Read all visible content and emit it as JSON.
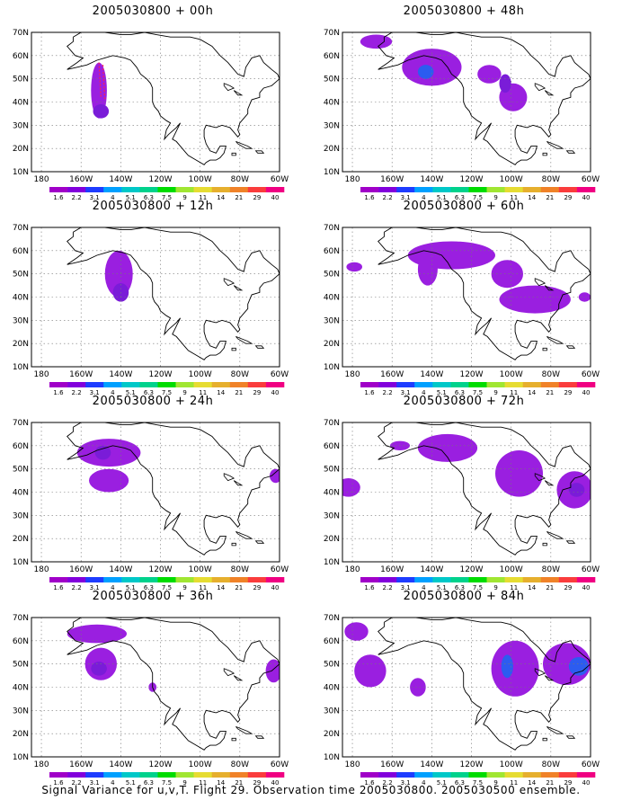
{
  "caption": "Signal Variance for u,v,T. Flight 29. Observation time 2005030800. 2005030500 ensemble.",
  "lat_labels": [
    "70N",
    "60N",
    "50N",
    "40N",
    "30N",
    "20N",
    "10N"
  ],
  "lon_labels": [
    "180",
    "160W",
    "140W",
    "120W",
    "100W",
    "80W",
    "60W"
  ],
  "colorbar_levels": [
    "1.6",
    "2.2",
    "3.1",
    "4",
    "5.1",
    "6.3",
    "7.5",
    "9",
    "11",
    "14",
    "21",
    "29",
    "40"
  ],
  "colorbar_colors": [
    "#a000c8",
    "#8200dc",
    "#1e3cff",
    "#00a0ff",
    "#00c8c8",
    "#00d28c",
    "#00dc00",
    "#a0e632",
    "#e6dc32",
    "#e6af2d",
    "#f08228",
    "#fa3c3c",
    "#f00082"
  ],
  "map_extent": {
    "lon_min": 175,
    "lon_max": 300,
    "lat_min": 10,
    "lat_max": 70
  },
  "panels": [
    {
      "title": "2005030800 + 00h",
      "blobs": [
        {
          "lon": 209,
          "lat": 45,
          "rlon": 4,
          "rlat": 12,
          "c": 0
        },
        {
          "lon": 210,
          "lat": 36,
          "rlon": 4,
          "rlat": 3,
          "c": 1
        }
      ],
      "marks": [
        {
          "lon1": 209,
          "lat1": 57,
          "lon2": 210,
          "lat2": 42
        },
        {
          "lon1": 211,
          "lat1": 56,
          "lon2": 212,
          "lat2": 41
        }
      ]
    },
    {
      "title": "2005030800 + 48h",
      "blobs": [
        {
          "lon": 192,
          "lat": 66,
          "rlon": 8,
          "rlat": 3,
          "c": 0
        },
        {
          "lon": 220,
          "lat": 55,
          "rlon": 15,
          "rlat": 8,
          "c": 0
        },
        {
          "lon": 217,
          "lat": 53,
          "rlon": 4,
          "rlat": 3,
          "c": 2
        },
        {
          "lon": 249,
          "lat": 52,
          "rlon": 6,
          "rlat": 4,
          "c": 0
        },
        {
          "lon": 261,
          "lat": 42,
          "rlon": 7,
          "rlat": 6,
          "c": 0
        },
        {
          "lon": 257,
          "lat": 48,
          "rlon": 3,
          "rlat": 4,
          "c": 1
        }
      ],
      "marks": []
    },
    {
      "title": "2005030800 + 12h",
      "blobs": [
        {
          "lon": 219,
          "lat": 50,
          "rlon": 7,
          "rlat": 10,
          "c": 0
        },
        {
          "lon": 220,
          "lat": 42,
          "rlon": 4,
          "rlat": 4,
          "c": 1
        }
      ],
      "marks": []
    },
    {
      "title": "2005030800 + 60h",
      "blobs": [
        {
          "lon": 230,
          "lat": 58,
          "rlon": 22,
          "rlat": 6,
          "c": 0
        },
        {
          "lon": 218,
          "lat": 52,
          "rlon": 5,
          "rlat": 7,
          "c": 0
        },
        {
          "lon": 258,
          "lat": 50,
          "rlon": 8,
          "rlat": 6,
          "c": 0
        },
        {
          "lon": 272,
          "lat": 39,
          "rlon": 18,
          "rlat": 6,
          "c": 0
        },
        {
          "lon": 181,
          "lat": 53,
          "rlon": 4,
          "rlat": 2,
          "c": 0
        },
        {
          "lon": 297,
          "lat": 40,
          "rlon": 3,
          "rlat": 2,
          "c": 0
        }
      ],
      "marks": []
    },
    {
      "title": "2005030800 + 24h",
      "blobs": [
        {
          "lon": 214,
          "lat": 57,
          "rlon": 16,
          "rlat": 6,
          "c": 0
        },
        {
          "lon": 214,
          "lat": 45,
          "rlon": 10,
          "rlat": 5,
          "c": 0
        },
        {
          "lon": 211,
          "lat": 57,
          "rlon": 4,
          "rlat": 3,
          "c": 1
        },
        {
          "lon": 298,
          "lat": 47,
          "rlon": 3,
          "rlat": 3,
          "c": 0
        }
      ],
      "marks": []
    },
    {
      "title": "2005030800 + 72h",
      "blobs": [
        {
          "lon": 228,
          "lat": 59,
          "rlon": 15,
          "rlat": 6,
          "c": 0
        },
        {
          "lon": 264,
          "lat": 48,
          "rlon": 12,
          "rlat": 10,
          "c": 0
        },
        {
          "lon": 178,
          "lat": 42,
          "rlon": 6,
          "rlat": 4,
          "c": 0
        },
        {
          "lon": 292,
          "lat": 41,
          "rlon": 9,
          "rlat": 8,
          "c": 0
        },
        {
          "lon": 293,
          "lat": 41,
          "rlon": 4,
          "rlat": 3,
          "c": 1
        },
        {
          "lon": 204,
          "lat": 60,
          "rlon": 5,
          "rlat": 2,
          "c": 0
        }
      ],
      "marks": []
    },
    {
      "title": "2005030800 + 36h",
      "blobs": [
        {
          "lon": 208,
          "lat": 63,
          "rlon": 15,
          "rlat": 4,
          "c": 0
        },
        {
          "lon": 210,
          "lat": 50,
          "rlon": 8,
          "rlat": 7,
          "c": 0
        },
        {
          "lon": 209,
          "lat": 48,
          "rlon": 4,
          "rlat": 3,
          "c": 1
        },
        {
          "lon": 236,
          "lat": 40,
          "rlon": 2,
          "rlat": 2,
          "c": 0
        },
        {
          "lon": 297,
          "lat": 47,
          "rlon": 4,
          "rlat": 5,
          "c": 0
        }
      ],
      "marks": []
    },
    {
      "title": "2005030800 + 84h",
      "blobs": [
        {
          "lon": 182,
          "lat": 64,
          "rlon": 6,
          "rlat": 4,
          "c": 0
        },
        {
          "lon": 189,
          "lat": 47,
          "rlon": 8,
          "rlat": 7,
          "c": 0
        },
        {
          "lon": 213,
          "lat": 40,
          "rlon": 4,
          "rlat": 4,
          "c": 0
        },
        {
          "lon": 262,
          "lat": 48,
          "rlon": 12,
          "rlat": 12,
          "c": 0
        },
        {
          "lon": 258,
          "lat": 49,
          "rlon": 3,
          "rlat": 5,
          "c": 2
        },
        {
          "lon": 288,
          "lat": 50,
          "rlon": 12,
          "rlat": 9,
          "c": 0
        },
        {
          "lon": 294,
          "lat": 49,
          "rlon": 5,
          "rlat": 4,
          "c": 2
        }
      ],
      "marks": []
    }
  ]
}
